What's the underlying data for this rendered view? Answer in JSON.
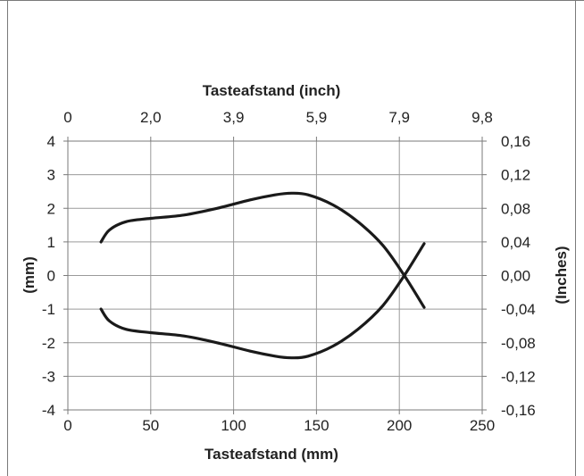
{
  "chart_data": {
    "type": "line",
    "title": "",
    "xlabel": "Tasteafstand (mm)",
    "x2label": "Tasteafstand (inch)",
    "ylabel": "(mm)",
    "y2label": "(Inches)",
    "xlim": [
      0,
      250
    ],
    "ylim": [
      -4,
      4
    ],
    "grid": true,
    "x_ticks": [
      "0",
      "50",
      "100",
      "150",
      "200",
      "250"
    ],
    "x2_ticks": [
      "0",
      "2,0",
      "3,9",
      "5,9",
      "7,9",
      "9,8"
    ],
    "y_ticks": [
      "-4",
      "-3",
      "-2",
      "-1",
      "0",
      "1",
      "2",
      "3",
      "4"
    ],
    "y2_ticks": [
      "-0,16",
      "-0,12",
      "-0,08",
      "-0,04",
      "0,00",
      "0,04",
      "0,08",
      "0,12",
      "0,16"
    ],
    "series": [
      {
        "name": "",
        "x": [
          20,
          25,
          35,
          50,
          70,
          90,
          110,
          125,
          135,
          145,
          160,
          175,
          190,
          203,
          215
        ],
        "y": [
          1.0,
          1.35,
          1.6,
          1.7,
          1.8,
          2.0,
          2.25,
          2.4,
          2.45,
          2.4,
          2.1,
          1.6,
          0.9,
          0.0,
          -0.95
        ]
      },
      {
        "name": "",
        "x": [
          20,
          25,
          35,
          50,
          70,
          90,
          110,
          125,
          135,
          145,
          160,
          175,
          190,
          203,
          215
        ],
        "y": [
          -1.0,
          -1.35,
          -1.6,
          -1.7,
          -1.8,
          -2.0,
          -2.25,
          -2.4,
          -2.45,
          -2.4,
          -2.1,
          -1.6,
          -0.9,
          0.0,
          0.95
        ]
      }
    ]
  }
}
